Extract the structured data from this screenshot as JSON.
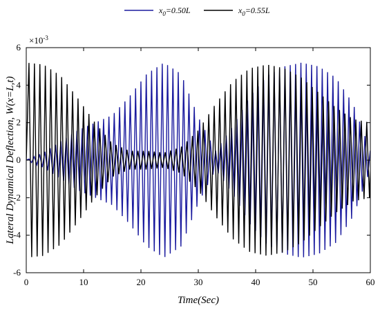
{
  "chart_data": {
    "type": "line",
    "xlabel": "Time(Sec)",
    "ylabel": "Lateral Dynamical Deflection, W(x=L,t)",
    "y_multiplier": "×10",
    "y_multiplier_exponent": "-3",
    "xlim": [
      0,
      60
    ],
    "ylim": [
      -6,
      6
    ],
    "x_ticks": [
      0,
      10,
      20,
      30,
      40,
      50,
      60
    ],
    "y_ticks": [
      -6,
      -4,
      -2,
      0,
      2,
      4,
      6
    ],
    "grid": false,
    "legend_position": "top-center",
    "series": [
      {
        "name_prefix": "x",
        "name_sub": "0",
        "name_suffix": "=0.50L",
        "color": "#1a1a9e",
        "oscillation_period_sec": 0.93,
        "amplitude_envelope": {
          "t": [
            0,
            3,
            6,
            9,
            12,
            15,
            18,
            21,
            24,
            27,
            30,
            33,
            36,
            39,
            42,
            45,
            48,
            51,
            54,
            57,
            60
          ],
          "amp": [
            0.0,
            0.4,
            1.0,
            1.6,
            2.0,
            2.4,
            3.4,
            4.6,
            5.2,
            4.6,
            2.3,
            0.5,
            1.8,
            3.4,
            4.5,
            5.0,
            5.2,
            5.0,
            4.4,
            3.0,
            0.5
          ]
        }
      },
      {
        "name_prefix": "x",
        "name_sub": "0",
        "name_suffix": "=0.55L",
        "color": "#000000",
        "oscillation_period_sec": 0.95,
        "amplitude_envelope": {
          "t": [
            0,
            3,
            6,
            9,
            12,
            15,
            18,
            21,
            24,
            27,
            30,
            33,
            36,
            39,
            42,
            45,
            48,
            51,
            54,
            57,
            60
          ],
          "amp": [
            5.2,
            5.1,
            4.5,
            3.3,
            2.0,
            0.9,
            0.5,
            0.5,
            0.4,
            0.7,
            1.6,
            3.0,
            4.2,
            4.9,
            5.1,
            4.9,
            4.4,
            3.6,
            2.8,
            2.2,
            2.0
          ]
        }
      }
    ]
  }
}
